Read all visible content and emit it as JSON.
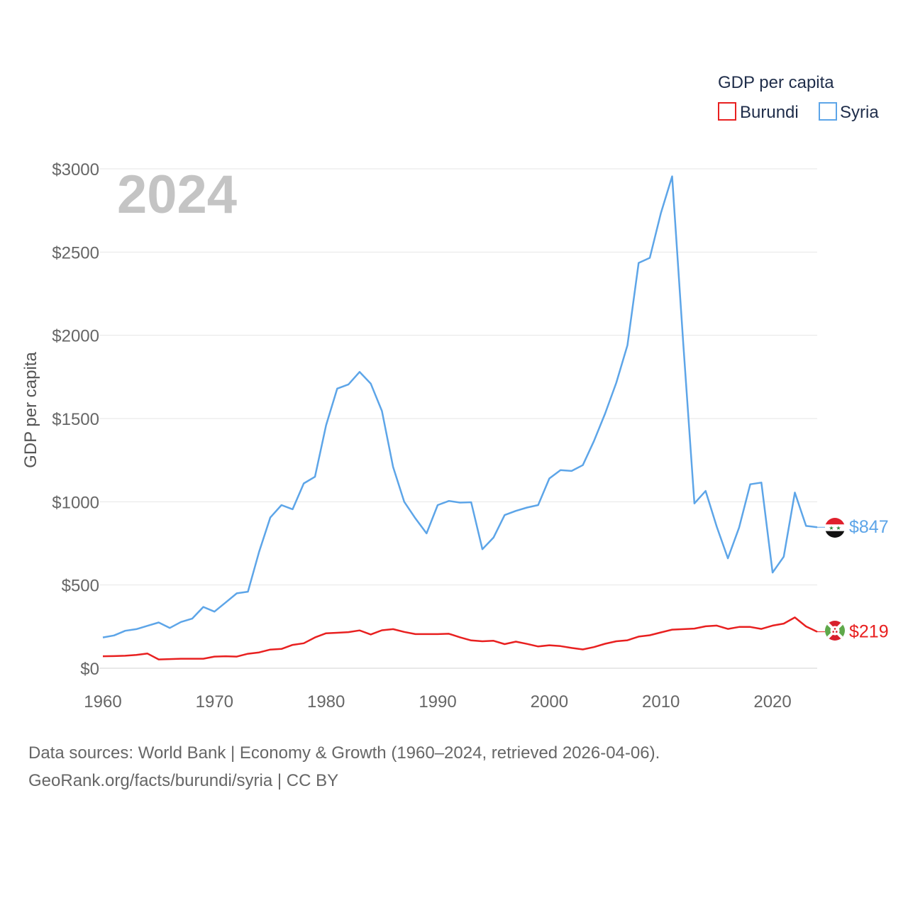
{
  "chart_data": {
    "type": "line",
    "year_label": "2024",
    "ylabel": "GDP per capita",
    "legend": {
      "title": "GDP per capita",
      "position": "top-right"
    },
    "xlim": [
      1960,
      2024
    ],
    "ylim": [
      0,
      3000
    ],
    "x_ticks": [
      1960,
      1970,
      1980,
      1990,
      2000,
      2010,
      2020
    ],
    "y_ticks": [
      0,
      500,
      1000,
      1500,
      2000,
      2500,
      3000
    ],
    "y_tick_labels": [
      "$0",
      "$500",
      "$1000",
      "$1500",
      "$2000",
      "$2500",
      "$3000"
    ],
    "x": [
      1960,
      1961,
      1962,
      1963,
      1964,
      1965,
      1966,
      1967,
      1968,
      1969,
      1970,
      1971,
      1972,
      1973,
      1974,
      1975,
      1976,
      1977,
      1978,
      1979,
      1980,
      1981,
      1982,
      1983,
      1984,
      1985,
      1986,
      1987,
      1988,
      1989,
      1990,
      1991,
      1992,
      1993,
      1994,
      1995,
      1996,
      1997,
      1998,
      1999,
      2000,
      2001,
      2002,
      2003,
      2004,
      2005,
      2006,
      2007,
      2008,
      2009,
      2010,
      2011,
      2012,
      2013,
      2014,
      2015,
      2016,
      2017,
      2018,
      2019,
      2020,
      2021,
      2022,
      2023,
      2024
    ],
    "series": [
      {
        "name": "Syria",
        "color": "#5da5e8",
        "end_label": "$847",
        "values": [
          185,
          197,
          225,
          235,
          255,
          275,
          242,
          278,
          298,
          368,
          340,
          395,
          450,
          460,
          700,
          905,
          980,
          955,
          1110,
          1150,
          1460,
          1680,
          1705,
          1780,
          1710,
          1545,
          1210,
          1000,
          900,
          810,
          980,
          1005,
          995,
          997,
          715,
          785,
          920,
          945,
          965,
          980,
          1140,
          1190,
          1185,
          1220,
          1365,
          1530,
          1715,
          1940,
          2435,
          2465,
          2735,
          2955,
          1950,
          990,
          1065,
          850,
          660,
          845,
          1105,
          1115,
          575,
          670,
          1055,
          855,
          847
        ]
      },
      {
        "name": "Burundi",
        "color": "#e82020",
        "end_label": "$219",
        "values": [
          72,
          73,
          75,
          80,
          88,
          53,
          55,
          57,
          57,
          57,
          70,
          72,
          70,
          87,
          95,
          112,
          116,
          140,
          150,
          185,
          210,
          213,
          217,
          227,
          203,
          228,
          235,
          218,
          205,
          205,
          205,
          207,
          186,
          167,
          162,
          165,
          145,
          160,
          146,
          131,
          138,
          133,
          122,
          113,
          127,
          147,
          162,
          168,
          190,
          198,
          215,
          232,
          235,
          238,
          252,
          256,
          236,
          248,
          248,
          236,
          256,
          268,
          305,
          251,
          219
        ]
      }
    ]
  },
  "footer": {
    "line1": "Data sources: World Bank | Economy & Growth (1960–2024, retrieved 2026-04-06).",
    "line2": "GeoRank.org/facts/burundi/syria | CC BY"
  }
}
